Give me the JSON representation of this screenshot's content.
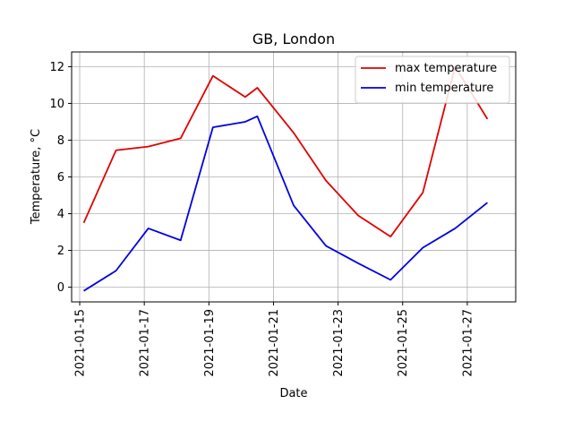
{
  "chart_data": {
    "type": "line",
    "title": "GB, London",
    "xlabel": "Date",
    "ylabel": "Temperature, °C",
    "x_tick_labels": [
      "2021-01-15",
      "2021-01-17",
      "2021-01-19",
      "2021-01-21",
      "2021-01-23",
      "2021-01-25",
      "2021-01-27"
    ],
    "y_tick_labels": [
      "0",
      "2",
      "4",
      "6",
      "8",
      "10",
      "12"
    ],
    "xlim": [
      "2021-01-14 18:00",
      "2021-01-28 12:00"
    ],
    "ylim": [
      -0.8,
      12.8
    ],
    "grid": true,
    "legend_position": "top-right",
    "series": [
      {
        "name": "max temperature",
        "color": "#e00000",
        "points": [
          {
            "x": "2021-01-15 03:00",
            "y": 3.5
          },
          {
            "x": "2021-01-16 03:00",
            "y": 7.45
          },
          {
            "x": "2021-01-17 03:00",
            "y": 7.65
          },
          {
            "x": "2021-01-18 03:00",
            "y": 8.1
          },
          {
            "x": "2021-01-19 03:00",
            "y": 11.5
          },
          {
            "x": "2021-01-20 03:00",
            "y": 10.35
          },
          {
            "x": "2021-01-20 12:00",
            "y": 10.85
          },
          {
            "x": "2021-01-21 15:00",
            "y": 8.4
          },
          {
            "x": "2021-01-22 15:00",
            "y": 5.8
          },
          {
            "x": "2021-01-23 15:00",
            "y": 3.9
          },
          {
            "x": "2021-01-24 15:00",
            "y": 2.75
          },
          {
            "x": "2021-01-25 15:00",
            "y": 5.15
          },
          {
            "x": "2021-01-26 15:00",
            "y": 12.0
          },
          {
            "x": "2021-01-27 15:00",
            "y": 9.15
          }
        ]
      },
      {
        "name": "min temperature",
        "color": "#0000e0",
        "points": [
          {
            "x": "2021-01-15 03:00",
            "y": -0.2
          },
          {
            "x": "2021-01-16 03:00",
            "y": 0.9
          },
          {
            "x": "2021-01-17 03:00",
            "y": 3.2
          },
          {
            "x": "2021-01-18 03:00",
            "y": 2.55
          },
          {
            "x": "2021-01-19 03:00",
            "y": 8.7
          },
          {
            "x": "2021-01-20 03:00",
            "y": 9.0
          },
          {
            "x": "2021-01-20 12:00",
            "y": 9.3
          },
          {
            "x": "2021-01-21 15:00",
            "y": 4.45
          },
          {
            "x": "2021-01-22 15:00",
            "y": 2.25
          },
          {
            "x": "2021-01-23 15:00",
            "y": 1.3
          },
          {
            "x": "2021-01-24 15:00",
            "y": 0.4
          },
          {
            "x": "2021-01-25 15:00",
            "y": 2.15
          },
          {
            "x": "2021-01-26 15:00",
            "y": 3.2
          },
          {
            "x": "2021-01-27 15:00",
            "y": 4.6
          }
        ]
      }
    ]
  }
}
